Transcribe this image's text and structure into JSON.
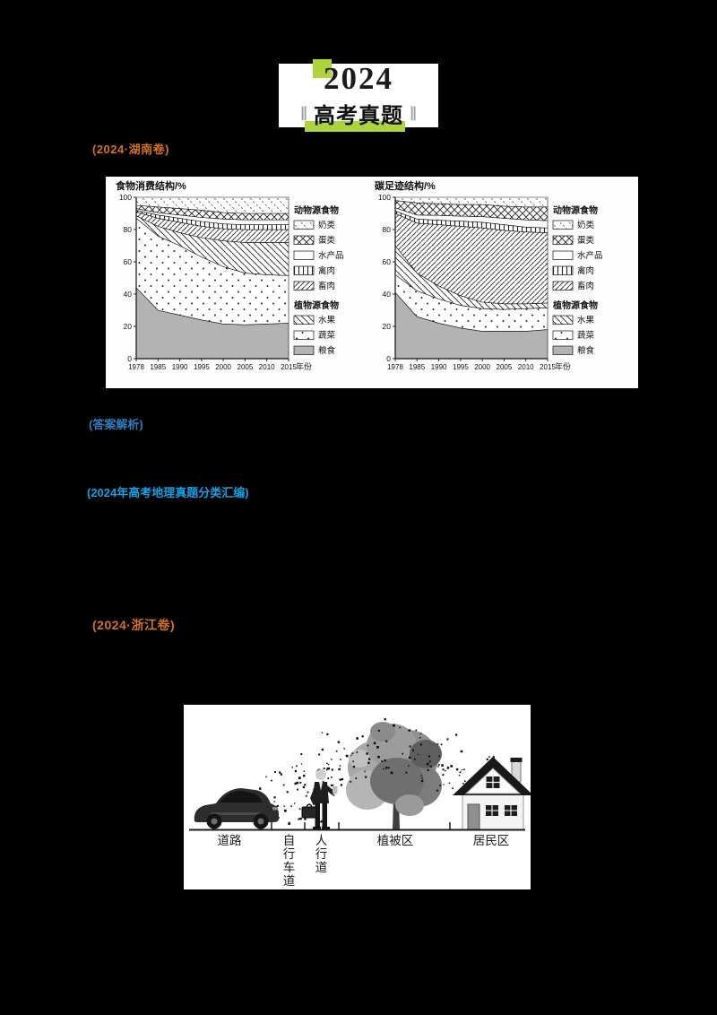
{
  "page": {
    "background": "#000000"
  },
  "header": {
    "year": "2024",
    "title": "高考真题",
    "slash_mark": "∥",
    "accent_color": "#aed43c"
  },
  "badges": {
    "color": "#d4731d",
    "question1_source": "(2024·湖南卷)",
    "question2_source": "(2024·浙江卷)"
  },
  "notes": {
    "answer_note": "(答案解析)",
    "answer_note_color": "#2a7fbf",
    "compilation_note": "(2024年高考地理真题分类汇编)",
    "compilation_note_color": "#14a0e6"
  },
  "chart_data": [
    {
      "type": "area",
      "stacked": true,
      "title": "食物消费结构/%",
      "x": [
        1978,
        1985,
        1990,
        1995,
        2000,
        2005,
        2010,
        2015
      ],
      "xlabel": "年份",
      "ylim": [
        0,
        100
      ],
      "yticks": [
        0,
        20,
        40,
        60,
        80,
        100
      ],
      "legend_groups": [
        {
          "header": "动物源食物",
          "items": [
            "奶类",
            "蛋类",
            "水产品",
            "禽肉",
            "畜肉"
          ]
        },
        {
          "header": "植物源食物",
          "items": [
            "水果",
            "蔬菜",
            "粮食"
          ]
        }
      ],
      "series": [
        {
          "name": "粮食",
          "pattern": "grain",
          "values": [
            44,
            30,
            27,
            24,
            21.5,
            21,
            21.5,
            22
          ]
        },
        {
          "name": "蔬菜",
          "pattern": "veg",
          "values": [
            43,
            46,
            43,
            39,
            35.5,
            32,
            30.5,
            29.5
          ]
        },
        {
          "name": "水果",
          "pattern": "fruit",
          "values": [
            1.5,
            6,
            8,
            12,
            16,
            19,
            20,
            20.5
          ]
        },
        {
          "name": "畜肉",
          "pattern": "livestock",
          "values": [
            2.5,
            5,
            6.5,
            7,
            7.5,
            8,
            8,
            8
          ]
        },
        {
          "name": "禽肉",
          "pattern": "poultry",
          "values": [
            1,
            2,
            2.5,
            3,
            3,
            3,
            3,
            3
          ]
        },
        {
          "name": "水产品",
          "pattern": "aqua",
          "values": [
            1,
            1.5,
            2,
            2.5,
            3,
            3,
            3,
            3
          ]
        },
        {
          "name": "蛋类",
          "pattern": "egg",
          "values": [
            2,
            3.5,
            4,
            4.5,
            4,
            4,
            4,
            4
          ]
        },
        {
          "name": "奶类",
          "pattern": "milk",
          "values": [
            5,
            6,
            7,
            8,
            9.5,
            10,
            10,
            10
          ]
        }
      ]
    },
    {
      "type": "area",
      "stacked": true,
      "title": "碳足迹结构/%",
      "x": [
        1978,
        1985,
        1990,
        1995,
        2000,
        2005,
        2010,
        2015
      ],
      "xlabel": "年份",
      "ylim": [
        0,
        100
      ],
      "yticks": [
        0,
        20,
        40,
        60,
        80,
        100
      ],
      "legend_groups": [
        {
          "header": "动物源食物",
          "items": [
            "奶类",
            "蛋类",
            "水产品",
            "禽肉",
            "畜肉"
          ]
        },
        {
          "header": "植物源食物",
          "items": [
            "水果",
            "蔬菜",
            "粮食"
          ]
        }
      ],
      "series": [
        {
          "name": "粮食",
          "pattern": "grain",
          "values": [
            41,
            26,
            22,
            19,
            17,
            17,
            17,
            18
          ]
        },
        {
          "name": "蔬菜",
          "pattern": "veg",
          "values": [
            11,
            16,
            15,
            14,
            14,
            13.5,
            14,
            13.5
          ]
        },
        {
          "name": "水果",
          "pattern": "fruit",
          "values": [
            18,
            11,
            8,
            6,
            4,
            3.5,
            3,
            3
          ]
        },
        {
          "name": "畜肉",
          "pattern": "livestock",
          "values": [
            20,
            31,
            38,
            43,
            46,
            45.5,
            44.5,
            43.5
          ]
        },
        {
          "name": "禽肉",
          "pattern": "poultry",
          "values": [
            1.5,
            2.5,
            2.8,
            3.2,
            3.5,
            3.5,
            3,
            3
          ]
        },
        {
          "name": "水产品",
          "pattern": "aqua",
          "values": [
            2,
            2.5,
            3,
            3.1,
            3.5,
            4,
            4.5,
            4.5
          ]
        },
        {
          "name": "蛋类",
          "pattern": "egg",
          "values": [
            4.5,
            7.5,
            7.2,
            7.2,
            7.5,
            7.5,
            8,
            8.5
          ]
        },
        {
          "name": "奶类",
          "pattern": "milk",
          "values": [
            2,
            3.5,
            4,
            4.5,
            4.5,
            5.5,
            6,
            6
          ]
        }
      ]
    }
  ],
  "diagram": {
    "zones": [
      {
        "label": "道路"
      },
      {
        "label": "自行车道"
      },
      {
        "label": "人行道"
      },
      {
        "label": "植被区"
      },
      {
        "label": "居民区"
      }
    ],
    "elements": [
      "car",
      "pedestrian-with-briefcase",
      "tree",
      "house",
      "dust-particles"
    ]
  }
}
